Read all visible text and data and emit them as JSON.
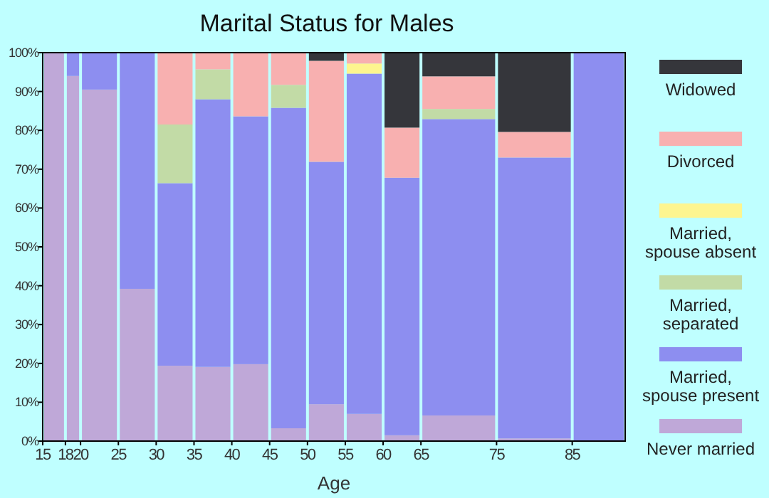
{
  "chart_data": {
    "type": "bar",
    "title": "Marital Status for Males",
    "xlabel": "Age",
    "stacked": true,
    "legend": "right",
    "grid": false,
    "x": [
      16.5,
      19,
      22.5,
      27.5,
      32.5,
      37.5,
      42.5,
      47.5,
      52.5,
      57.5,
      62.5,
      70,
      80,
      88.5
    ],
    "xlim": [
      15,
      92
    ],
    "xticks": [
      15,
      18,
      20,
      25,
      30,
      35,
      40,
      45,
      50,
      55,
      60,
      65,
      75,
      85
    ],
    "ylim": [
      0,
      100
    ],
    "yticks": [
      {
        "value": 0,
        "label": "0%"
      },
      {
        "value": 10,
        "label": "10%"
      },
      {
        "value": 20,
        "label": "20%"
      },
      {
        "value": 30,
        "label": "30%"
      },
      {
        "value": 40,
        "label": "40%"
      },
      {
        "value": 50,
        "label": "50%"
      },
      {
        "value": 60,
        "label": "60%"
      },
      {
        "value": 70,
        "label": "70%"
      },
      {
        "value": 80,
        "label": "80%"
      },
      {
        "value": 90,
        "label": "90%"
      },
      {
        "value": 100,
        "label": "100%"
      }
    ],
    "series": [
      {
        "name": "Never married",
        "color": "#bfa8d8",
        "values": [
          100,
          94,
          90.5,
          39.2,
          19.4,
          19.1,
          19.8,
          3.3,
          9.5,
          7.0,
          1.5,
          6.6,
          0.7,
          0
        ]
      },
      {
        "name": "Married, spouse present",
        "color": "#8d8ef0",
        "values": [
          0,
          6,
          9.5,
          60.8,
          47,
          68.9,
          63.8,
          82.5,
          62.4,
          87.6,
          66.3,
          76.3,
          72.3,
          100
        ]
      },
      {
        "name": "Married, separated",
        "color": "#c2dba6",
        "values": [
          0,
          0,
          0,
          0,
          15.1,
          7.7,
          0,
          5.9,
          0,
          0,
          0,
          2.6,
          0,
          0
        ]
      },
      {
        "name": "Married, spouse absent",
        "color": "#fdf58f",
        "values": [
          0,
          0,
          0,
          0,
          0,
          0,
          0,
          0,
          0,
          2.6,
          0,
          0,
          0,
          0
        ]
      },
      {
        "name": "Divorced",
        "color": "#f8b0b0",
        "values": [
          0,
          0,
          0,
          0,
          18.5,
          4.3,
          16.4,
          8.3,
          26,
          2.8,
          12.9,
          8.4,
          6.6,
          0
        ]
      },
      {
        "name": "Widowed",
        "color": "#35363b",
        "values": [
          0,
          0,
          0,
          0,
          0,
          0,
          0,
          0,
          2.1,
          0,
          19.3,
          6.1,
          20.4,
          0
        ]
      }
    ]
  }
}
